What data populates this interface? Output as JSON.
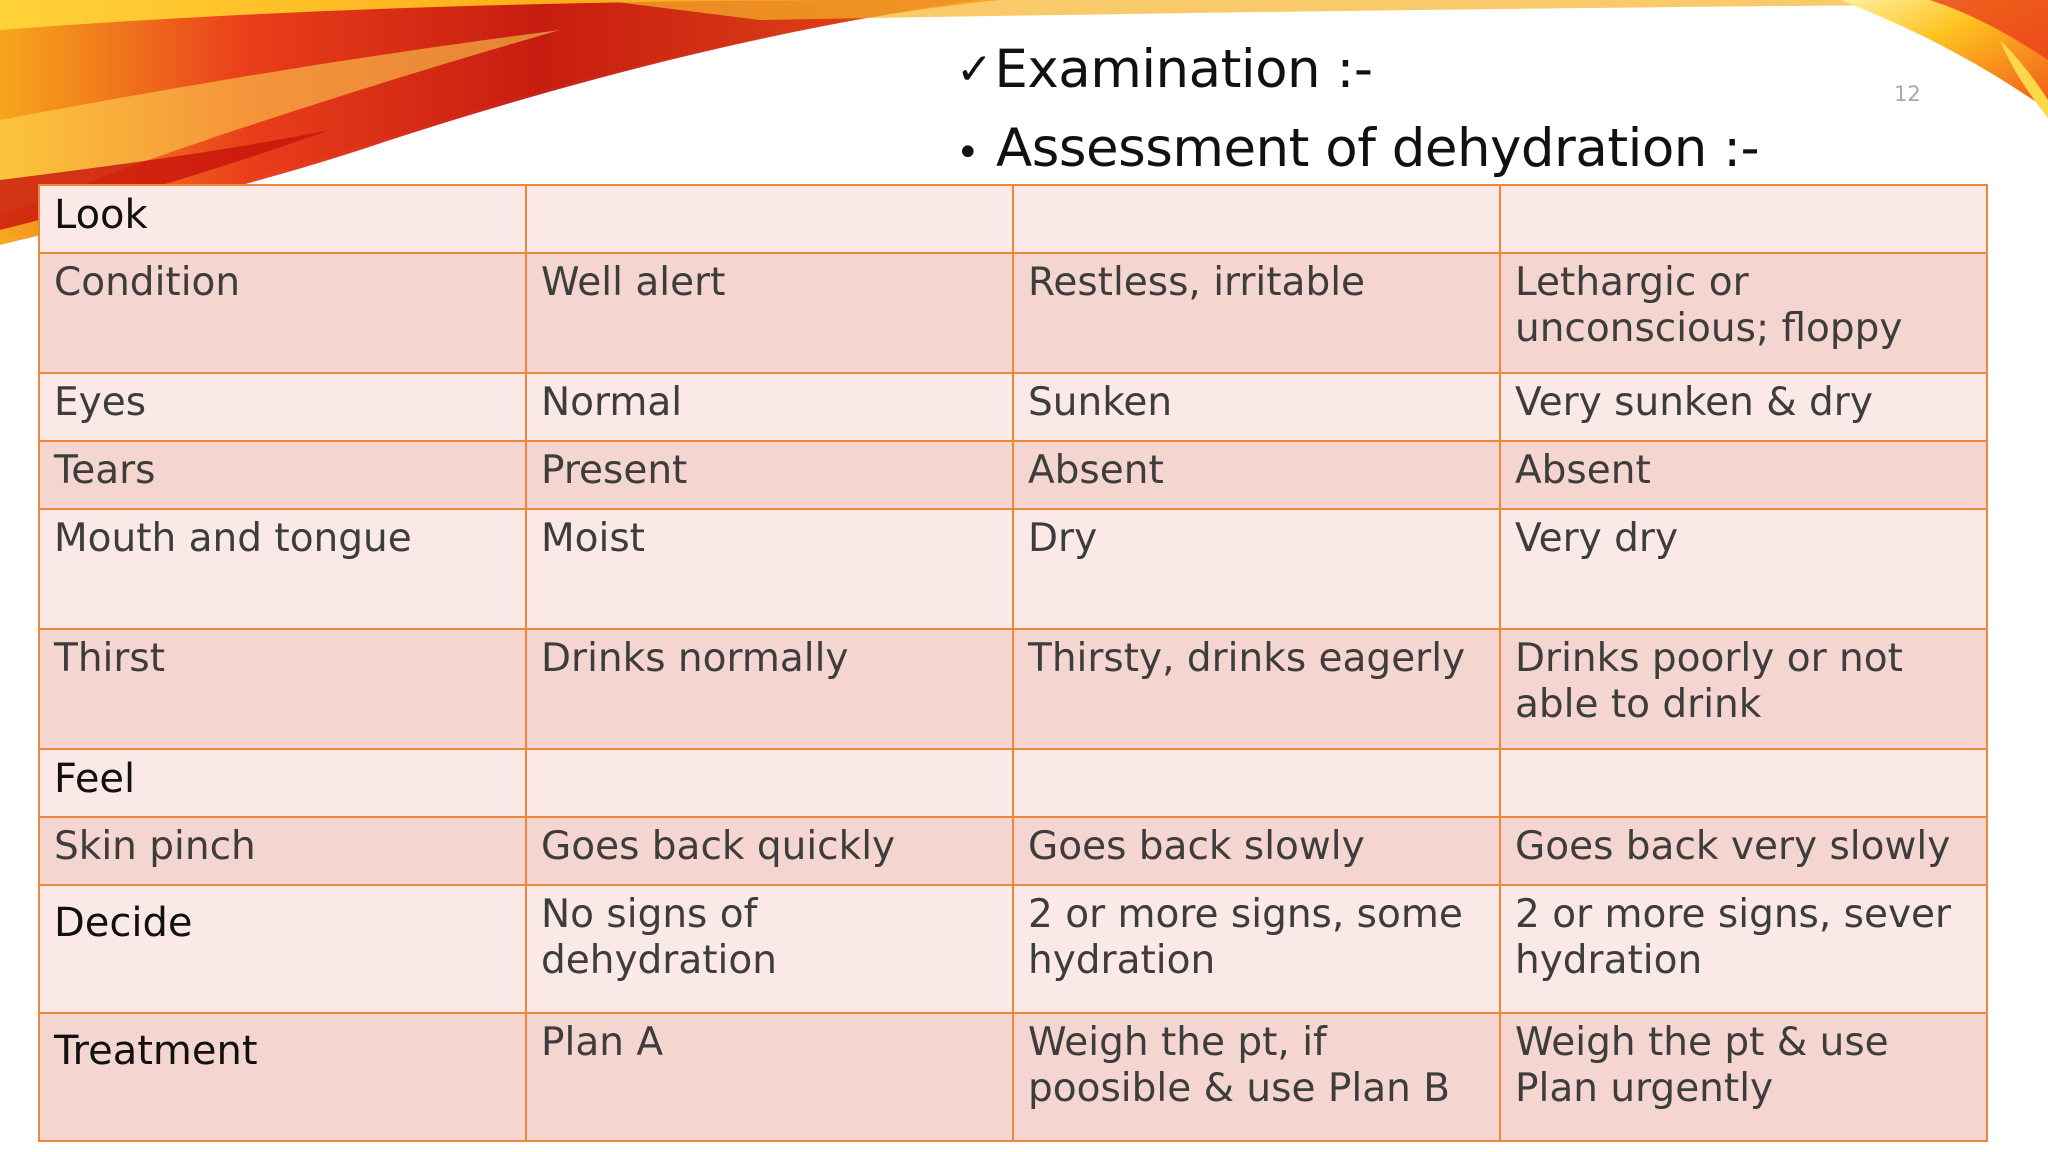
{
  "slide": {
    "number": "12",
    "heading_line1": "Examination :-",
    "heading_line1_mark": "✓",
    "heading_line2": "Assessment of dehydration :-",
    "heading_line2_mark": "•"
  },
  "colors": {
    "table_border": "#ec8838",
    "row_light": "#fae9e7",
    "row_dark": "#f5d5cf",
    "swoosh_red": "#e0231b",
    "swoosh_orange": "#f7931e",
    "swoosh_yellow": "#ffd21f"
  },
  "table": {
    "rows": [
      [
        "Look",
        "",
        "",
        ""
      ],
      [
        "Condition",
        "Well alert",
        "Restless, irritable",
        "Lethargic or unconscious; floppy"
      ],
      [
        "Eyes",
        "Normal",
        "Sunken",
        "Very sunken & dry"
      ],
      [
        "Tears",
        "Present",
        "Absent",
        "Absent"
      ],
      [
        "Mouth and tongue",
        "Moist",
        "Dry",
        "Very dry"
      ],
      [
        "Thirst",
        "Drinks normally",
        "Thirsty, drinks eagerly",
        "Drinks poorly or not able to drink"
      ],
      [
        "Feel",
        "",
        "",
        ""
      ],
      [
        "Skin pinch",
        "Goes back quickly",
        "Goes back slowly",
        "Goes back very slowly"
      ],
      [
        "Decide",
        "No signs of dehydration",
        "2 or more signs, some hydration",
        "2 or more signs, sever hydration"
      ],
      [
        "Treatment",
        "Plan A",
        "Weigh the pt, if poosible & use Plan B",
        "Weigh the pt & use Plan urgently"
      ]
    ]
  }
}
